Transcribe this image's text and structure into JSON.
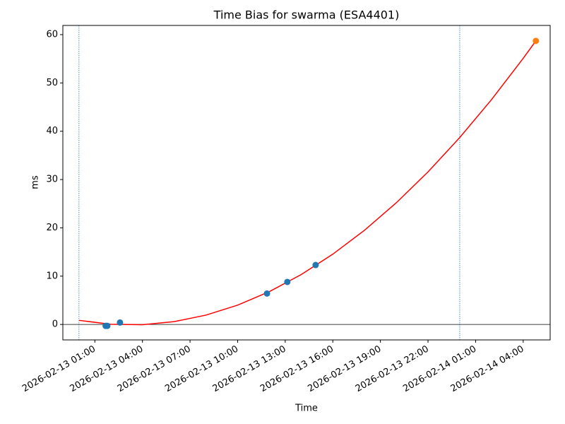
{
  "chart_data": {
    "type": "scatter",
    "title": "Time Bias for swarma (ESA4401)",
    "x_label": "Time",
    "y_label": "ms",
    "xlim": [
      "2026-02-12 22:59",
      "2026-02-14 05:42"
    ],
    "xticks": [
      "2026-02-13 01:00",
      "2026-02-13 04:00",
      "2026-02-13 07:00",
      "2026-02-13 10:00",
      "2026-02-13 13:00",
      "2026-02-13 16:00",
      "2026-02-13 19:00",
      "2026-02-13 22:00",
      "2026-02-14 01:00",
      "2026-02-14 04:00"
    ],
    "ylim": [
      -3.2,
      61.9
    ],
    "yticks": [
      0,
      10,
      20,
      30,
      40,
      50,
      60
    ],
    "vlines": [
      "2026-02-13 00:00",
      "2026-02-14 00:00"
    ],
    "vline_color": "#1f77b4",
    "hline": 0,
    "hline_color": "#000000",
    "series": [
      {
        "mode": "line",
        "color": "#ff0000",
        "x": [
          "2026-02-13 00:00",
          "2026-02-13 02:00",
          "2026-02-13 04:00",
          "2026-02-13 06:00",
          "2026-02-13 08:00",
          "2026-02-13 10:00",
          "2026-02-13 12:00",
          "2026-02-13 14:00",
          "2026-02-13 16:00",
          "2026-02-13 18:00",
          "2026-02-13 20:00",
          "2026-02-13 22:00",
          "2026-02-14 00:00",
          "2026-02-14 02:00",
          "2026-02-14 04:00",
          "2026-02-14 04:48"
        ],
        "values": [
          0.85,
          0.04,
          -0.05,
          0.58,
          1.93,
          4.0,
          6.8,
          10.31,
          14.55,
          19.5,
          25.18,
          31.58,
          38.69,
          46.53,
          55.09,
          58.7
        ]
      },
      {
        "mode": "points",
        "color": "#1f77b4",
        "x": [
          "2026-02-13 01:41",
          "2026-02-13 01:47",
          "2026-02-13 02:35",
          "2026-02-13 11:51",
          "2026-02-13 13:08",
          "2026-02-13 14:55"
        ],
        "values": [
          -0.3,
          -0.3,
          0.4,
          6.4,
          8.8,
          12.3
        ]
      },
      {
        "mode": "points",
        "color": "#ff7f0e",
        "x": [
          "2026-02-14 04:48"
        ],
        "values": [
          58.7
        ]
      }
    ]
  }
}
